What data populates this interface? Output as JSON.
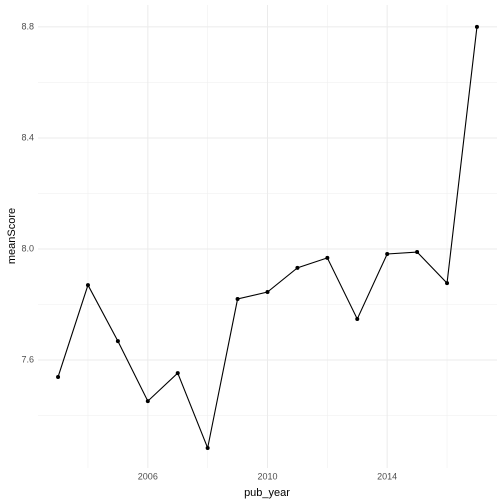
{
  "chart_data": {
    "type": "line",
    "x_label": "pub_year",
    "y_label": "meanScore",
    "x": [
      2003,
      2004,
      2005,
      2006,
      2007,
      2008,
      2009,
      2010,
      2011,
      2012,
      2013,
      2014,
      2015,
      2016,
      2017
    ],
    "series": [
      {
        "name": "meanScore",
        "color": "#000000",
        "values": [
          7.539,
          7.87,
          7.668,
          7.452,
          7.553,
          7.283,
          7.82,
          7.845,
          7.932,
          7.968,
          7.748,
          7.982,
          7.989,
          7.877,
          8.8
        ]
      }
    ],
    "xlim": [
      2002.33,
      2017.67
    ],
    "xticks": [
      2006,
      2010,
      2014
    ],
    "minor_xticks": [
      2004,
      2008,
      2012,
      2016
    ],
    "ylim": [
      7.211,
      8.879
    ],
    "yticks": [
      {
        "value": 7.6,
        "label": "7.6"
      },
      {
        "value": 8.0,
        "label": "8.0"
      },
      {
        "value": 8.4,
        "label": "8.4"
      },
      {
        "value": 8.8,
        "label": "8.8"
      }
    ],
    "minor_yticks": [
      7.4,
      7.8,
      8.2,
      8.6
    ],
    "grid": true,
    "markers": true
  }
}
